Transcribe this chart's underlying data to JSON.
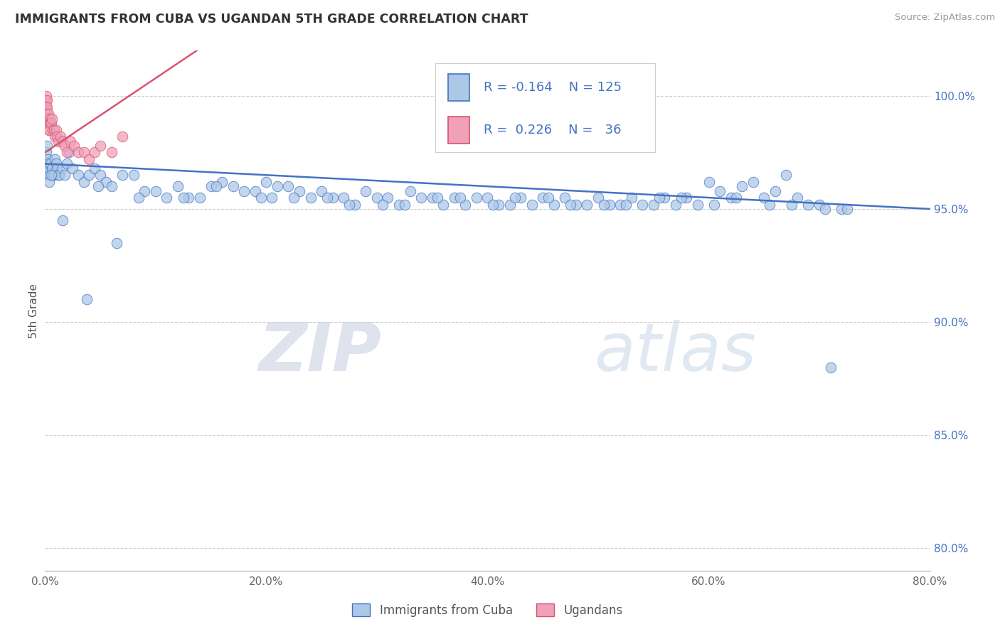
{
  "title": "IMMIGRANTS FROM CUBA VS UGANDAN 5TH GRADE CORRELATION CHART",
  "source": "Source: ZipAtlas.com",
  "ylabel": "5th Grade",
  "x_tick_labels": [
    "0.0%",
    "20.0%",
    "40.0%",
    "60.0%",
    "80.0%"
  ],
  "x_tick_vals": [
    0,
    20,
    40,
    60,
    80
  ],
  "y_right_labels": [
    "100.0%",
    "95.0%",
    "90.0%",
    "85.0%",
    "80.0%"
  ],
  "y_right_vals": [
    100,
    95,
    90,
    85,
    80
  ],
  "xlim": [
    0,
    80
  ],
  "ylim": [
    79,
    102
  ],
  "legend_label1": "Immigrants from Cuba",
  "legend_label2": "Ugandans",
  "r1": -0.164,
  "n1": 125,
  "r2": 0.226,
  "n2": 36,
  "color_blue": "#adc8e6",
  "color_pink": "#f0a0b8",
  "color_blue_line": "#4472c4",
  "color_pink_line": "#d9546e",
  "watermark_zip": "ZIP",
  "watermark_atlas": "atlas",
  "blue_trend_x0": 0,
  "blue_trend_y0": 97.0,
  "blue_trend_x1": 80,
  "blue_trend_y1": 95.0,
  "pink_trend_x0": 0,
  "pink_trend_y0": 97.5,
  "pink_trend_x1": 7,
  "pink_trend_y1": 99.8,
  "blue_dots_x": [
    0.1,
    0.15,
    0.2,
    0.25,
    0.3,
    0.35,
    0.4,
    0.5,
    0.6,
    0.7,
    0.8,
    0.9,
    1.0,
    1.1,
    1.2,
    1.3,
    1.5,
    1.8,
    2.0,
    2.5,
    3.0,
    3.5,
    4.0,
    4.5,
    5.0,
    5.5,
    6.0,
    7.0,
    8.0,
    9.0,
    10.0,
    11.0,
    12.0,
    13.0,
    14.0,
    15.0,
    16.0,
    17.0,
    18.0,
    19.0,
    20.0,
    21.0,
    22.0,
    23.0,
    24.0,
    25.0,
    26.0,
    27.0,
    28.0,
    29.0,
    30.0,
    31.0,
    32.0,
    33.0,
    34.0,
    35.0,
    36.0,
    37.0,
    38.0,
    39.0,
    40.0,
    41.0,
    42.0,
    43.0,
    44.0,
    45.0,
    46.0,
    47.0,
    48.0,
    49.0,
    50.0,
    51.0,
    52.0,
    53.0,
    54.0,
    55.0,
    56.0,
    57.0,
    58.0,
    59.0,
    60.0,
    61.0,
    62.0,
    63.0,
    64.0,
    65.0,
    66.0,
    67.0,
    68.0,
    69.0,
    70.0,
    71.0,
    72.0,
    6.5,
    3.8,
    2.2,
    1.6,
    0.55,
    4.8,
    8.5,
    15.5,
    20.5,
    25.5,
    30.5,
    35.5,
    40.5,
    45.5,
    50.5,
    55.5,
    60.5,
    65.5,
    70.5,
    19.5,
    27.5,
    37.5,
    47.5,
    57.5,
    67.5,
    12.5,
    22.5,
    32.5,
    42.5,
    52.5,
    62.5,
    72.5
  ],
  "blue_dots_y": [
    97.5,
    97.8,
    96.8,
    97.2,
    97.0,
    96.5,
    96.2,
    97.0,
    96.8,
    96.5,
    96.5,
    97.2,
    97.0,
    96.8,
    96.5,
    96.5,
    96.8,
    96.5,
    97.0,
    96.8,
    96.5,
    96.2,
    96.5,
    96.8,
    96.5,
    96.2,
    96.0,
    96.5,
    96.5,
    95.8,
    95.8,
    95.5,
    96.0,
    95.5,
    95.5,
    96.0,
    96.2,
    96.0,
    95.8,
    95.8,
    96.2,
    96.0,
    96.0,
    95.8,
    95.5,
    95.8,
    95.5,
    95.5,
    95.2,
    95.8,
    95.5,
    95.5,
    95.2,
    95.8,
    95.5,
    95.5,
    95.2,
    95.5,
    95.2,
    95.5,
    95.5,
    95.2,
    95.2,
    95.5,
    95.2,
    95.5,
    95.2,
    95.5,
    95.2,
    95.2,
    95.5,
    95.2,
    95.2,
    95.5,
    95.2,
    95.2,
    95.5,
    95.2,
    95.5,
    95.2,
    96.2,
    95.8,
    95.5,
    96.0,
    96.2,
    95.5,
    95.8,
    96.5,
    95.5,
    95.2,
    95.2,
    88.0,
    95.0,
    93.5,
    91.0,
    97.5,
    94.5,
    96.5,
    96.0,
    95.5,
    96.0,
    95.5,
    95.5,
    95.2,
    95.5,
    95.2,
    95.5,
    95.2,
    95.5,
    95.2,
    95.2,
    95.0,
    95.5,
    95.2,
    95.5,
    95.2,
    95.5,
    95.2,
    95.5,
    95.5,
    95.2,
    95.5,
    95.2,
    95.5,
    95.0
  ],
  "pink_dots_x": [
    0.05,
    0.08,
    0.1,
    0.12,
    0.15,
    0.18,
    0.2,
    0.22,
    0.25,
    0.28,
    0.3,
    0.35,
    0.4,
    0.45,
    0.5,
    0.55,
    0.6,
    0.7,
    0.8,
    0.9,
    1.0,
    1.1,
    1.2,
    1.4,
    1.6,
    1.8,
    2.0,
    2.3,
    2.6,
    3.0,
    3.5,
    4.0,
    4.5,
    5.0,
    6.0,
    7.0
  ],
  "pink_dots_y": [
    99.6,
    99.8,
    100.0,
    99.5,
    99.8,
    99.5,
    99.2,
    99.0,
    98.8,
    99.2,
    98.8,
    98.5,
    98.5,
    99.0,
    98.8,
    98.8,
    99.0,
    98.5,
    98.5,
    98.2,
    98.5,
    98.2,
    98.0,
    98.2,
    98.0,
    97.8,
    97.5,
    98.0,
    97.8,
    97.5,
    97.5,
    97.2,
    97.5,
    97.8,
    97.5,
    98.2
  ]
}
